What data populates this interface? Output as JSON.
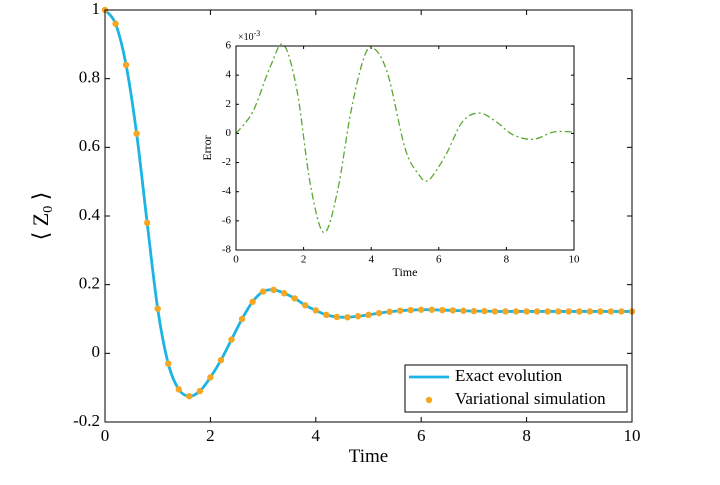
{
  "chart_data": [
    {
      "type": "line",
      "xlabel": "Time",
      "ylabel_parts": [
        "⟨ Z",
        "0",
        " ⟩"
      ],
      "x": [
        0,
        0.2,
        0.4,
        0.6,
        0.8,
        1,
        1.2,
        1.4,
        1.6,
        1.8,
        2,
        2.2,
        2.4,
        2.6,
        2.8,
        3,
        3.2,
        3.4,
        3.6,
        3.8,
        4,
        4.2,
        4.4,
        4.6,
        4.8,
        5,
        5.2,
        5.4,
        5.6,
        5.8,
        6,
        6.2,
        6.4,
        6.6,
        6.8,
        7,
        7.2,
        7.4,
        7.6,
        7.8,
        8,
        8.2,
        8.4,
        8.6,
        8.8,
        9,
        9.2,
        9.4,
        9.6,
        9.8,
        10
      ],
      "series": [
        {
          "name": "Exact evolution",
          "style": "line",
          "color": "#1cb4e3",
          "values": [
            1,
            0.96,
            0.84,
            0.64,
            0.38,
            0.13,
            -0.03,
            -0.105,
            -0.125,
            -0.11,
            -0.07,
            -0.02,
            0.04,
            0.1,
            0.15,
            0.18,
            0.185,
            0.175,
            0.16,
            0.14,
            0.125,
            0.112,
            0.106,
            0.105,
            0.108,
            0.112,
            0.117,
            0.121,
            0.124,
            0.126,
            0.127,
            0.127,
            0.126,
            0.125,
            0.124,
            0.123,
            0.123,
            0.122,
            0.122,
            0.122,
            0.122,
            0.122,
            0.122,
            0.122,
            0.122,
            0.122,
            0.122,
            0.122,
            0.122,
            0.122,
            0.122
          ]
        },
        {
          "name": "Variational simulation",
          "style": "dots",
          "color": "#f5a623",
          "values": [
            1,
            0.96,
            0.84,
            0.64,
            0.38,
            0.13,
            -0.03,
            -0.105,
            -0.125,
            -0.11,
            -0.07,
            -0.02,
            0.04,
            0.1,
            0.15,
            0.18,
            0.185,
            0.175,
            0.16,
            0.14,
            0.125,
            0.112,
            0.106,
            0.105,
            0.108,
            0.112,
            0.117,
            0.121,
            0.124,
            0.126,
            0.127,
            0.127,
            0.126,
            0.125,
            0.124,
            0.123,
            0.123,
            0.122,
            0.122,
            0.122,
            0.122,
            0.122,
            0.122,
            0.122,
            0.122,
            0.122,
            0.122,
            0.122,
            0.122,
            0.122,
            0.122
          ]
        }
      ],
      "xlim": [
        0,
        10
      ],
      "xticks": [
        0,
        2,
        4,
        6,
        8,
        10
      ],
      "ylim": [
        -0.2,
        1
      ],
      "yticks": [
        -0.2,
        0,
        0.2,
        0.4,
        0.6,
        0.8,
        1
      ],
      "legend": "lower right"
    },
    {
      "type": "line",
      "xlabel": "Time",
      "ylabel": "Error",
      "scale_label": {
        "base": "×10",
        "exponent": "-3"
      },
      "x": [
        0,
        0.5,
        1,
        1.4,
        1.8,
        2.2,
        2.6,
        3,
        3.4,
        3.8,
        4.1,
        4.5,
        5,
        5.4,
        5.7,
        6.2,
        6.7,
        7.2,
        7.7,
        8.2,
        8.8,
        9.4,
        10
      ],
      "series": [
        {
          "name": "Error",
          "style": "dashdot",
          "color": "#5aa832",
          "values": [
            0,
            1.5,
            4.5,
            6.1,
            3,
            -3.5,
            -6.8,
            -4,
            1.5,
            5.3,
            5.8,
            4,
            -1,
            -2.8,
            -3.2,
            -1.5,
            0.8,
            1.4,
            0.8,
            -0.1,
            -0.4,
            0.1,
            0.1
          ]
        }
      ],
      "xlim": [
        0,
        10
      ],
      "xticks": [
        0,
        2,
        4,
        6,
        8,
        10
      ],
      "ylim": [
        -8,
        6
      ],
      "yticks": [
        -8,
        -6,
        -4,
        -2,
        0,
        2,
        4,
        6
      ]
    }
  ]
}
